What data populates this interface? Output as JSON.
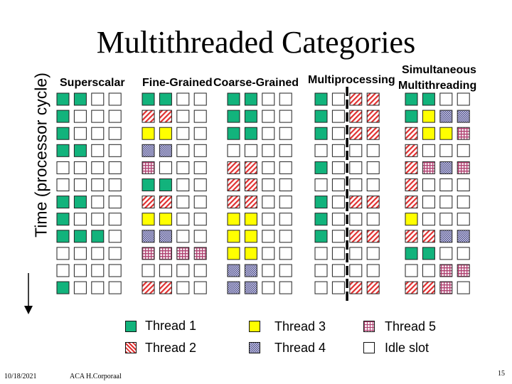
{
  "title": "Multithreaded Categories",
  "time_axis_label": "Time (processor cycle)",
  "columns": [
    {
      "id": "superscalar",
      "label": "Superscalar",
      "rows": [
        "11..",
        "1...",
        "1...",
        "11..",
        "....",
        "....",
        "11..",
        "1...",
        "111.",
        "....",
        "....",
        "1..."
      ]
    },
    {
      "id": "fine-grained",
      "label": "Fine-Grained",
      "rows": [
        "11..",
        "22..",
        "33..",
        "44..",
        "5...",
        "11..",
        "22..",
        "33..",
        "44..",
        "5555",
        "....",
        "22.."
      ]
    },
    {
      "id": "coarse-grained",
      "label": "Coarse-Grained",
      "rows": [
        "11..",
        "11..",
        "11..",
        "....",
        "22..",
        "22..",
        "22..",
        "33..",
        "33..",
        "33..",
        "44..",
        "44.."
      ]
    },
    {
      "id": "multiprocessing",
      "label": "Multiprocessing",
      "split": true,
      "rows": [
        "1.22",
        "1.22",
        "1.22",
        "....",
        "1...",
        "....",
        "1.22",
        "1...",
        "1.22",
        "....",
        "....",
        "..22"
      ]
    },
    {
      "id": "smt",
      "label": "Simultaneous Multithreading",
      "label_lines": [
        "Simultaneous",
        "Multithreading"
      ],
      "rows": [
        "11..",
        "1344",
        "2335",
        "2...",
        "2545",
        "2...",
        "2...",
        "3...",
        "2244",
        "11..",
        "..55",
        "225."
      ]
    }
  ],
  "legend": [
    {
      "thread": "1",
      "label": "Thread 1"
    },
    {
      "thread": "3",
      "label": "Thread 3"
    },
    {
      "thread": "5",
      "label": "Thread 5"
    },
    {
      "thread": "2",
      "label": "Thread 2"
    },
    {
      "thread": "4",
      "label": "Thread 4"
    },
    {
      "thread": ".",
      "label": "Idle slot"
    }
  ],
  "colors": {
    "thread1": "#12b37c",
    "thread2_stripe": "#e03030",
    "thread3": "#ffff00",
    "thread4": "#4a4a8a",
    "thread5": "#b04070",
    "idle": "#ffffff",
    "border": "#222222"
  },
  "footer": {
    "date": "10/18/2021",
    "author": "ACA H.Corporaal",
    "page": "15"
  }
}
